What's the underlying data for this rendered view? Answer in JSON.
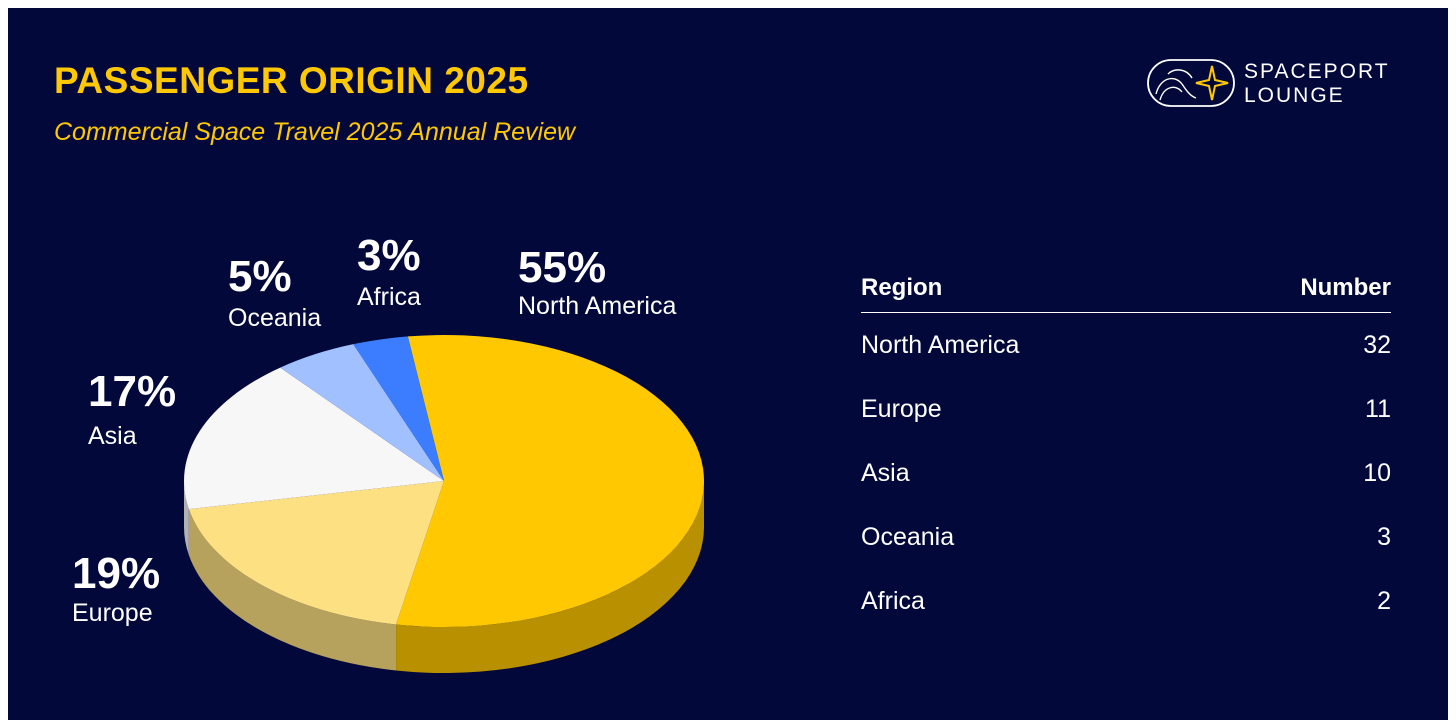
{
  "header": {
    "title": "PASSENGER ORIGIN 2025",
    "subtitle": "Commercial Space Travel 2025 Annual Review"
  },
  "logo": {
    "line1": "SPACEPORT",
    "line2": "LOUNGE",
    "icon": "spaceport-lounge-logo-icon"
  },
  "colors": {
    "background": "#02093a",
    "accent": "#ffc800",
    "north_america": "#ffc800",
    "europe": "#fde081",
    "asia": "#f7f7f7",
    "oceania": "#a0c0ff",
    "africa": "#3c7dff"
  },
  "chart_data": {
    "type": "pie",
    "title": "PASSENGER ORIGIN 2025",
    "style": "3d",
    "slices": [
      {
        "label": "North America",
        "value": 32,
        "percent_label": "55%",
        "color": "#ffc800"
      },
      {
        "label": "Europe",
        "value": 11,
        "percent_label": "19%",
        "color": "#fde081"
      },
      {
        "label": "Asia",
        "value": 10,
        "percent_label": "17%",
        "color": "#f7f7f7"
      },
      {
        "label": "Oceania",
        "value": 3,
        "percent_label": "5%",
        "color": "#a0c0ff"
      },
      {
        "label": "Africa",
        "value": 2,
        "percent_label": "3%",
        "color": "#3c7dff"
      }
    ]
  },
  "table": {
    "headers": {
      "region": "Region",
      "number": "Number"
    },
    "rows": [
      {
        "region": "North America",
        "number": "32"
      },
      {
        "region": "Europe",
        "number": "11"
      },
      {
        "region": "Asia",
        "number": "10"
      },
      {
        "region": "Oceania",
        "number": "3"
      },
      {
        "region": "Africa",
        "number": "2"
      }
    ]
  }
}
